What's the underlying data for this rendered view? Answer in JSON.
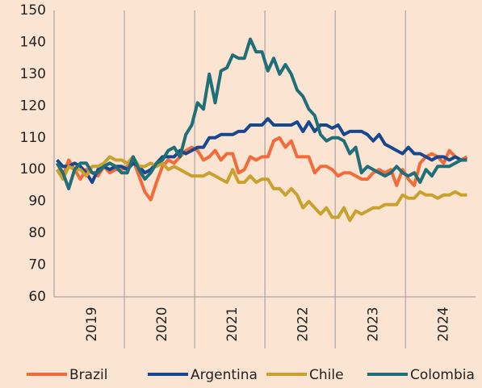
{
  "chart_data": {
    "type": "line",
    "categories": [
      null,
      null,
      null,
      null,
      null,
      null,
      "2019",
      null,
      null,
      null,
      null,
      null,
      null,
      null,
      null,
      null,
      null,
      null,
      "2020",
      null,
      null,
      null,
      null,
      null,
      null,
      null,
      null,
      null,
      null,
      null,
      "2021",
      null,
      null,
      null,
      null,
      null,
      null,
      null,
      null,
      null,
      null,
      null,
      "2022",
      null,
      null,
      null,
      null,
      null,
      null,
      null,
      null,
      null,
      null,
      null,
      "2023",
      null,
      null,
      null,
      null,
      null,
      null,
      null,
      null,
      null,
      null,
      null,
      "2024",
      null,
      null,
      null,
      null
    ],
    "series": [
      {
        "name": "Brazil",
        "color": "#f26b3a",
        "values": [
          100,
          98,
          103,
          100,
          97,
          100,
          99,
          98,
          101,
          99,
          100,
          100,
          101,
          103,
          98,
          93,
          90.5,
          96,
          101,
          103,
          102,
          104,
          106,
          107,
          106,
          103,
          104,
          106,
          103,
          105,
          105,
          99,
          100,
          104,
          103,
          104,
          104,
          109,
          110,
          107,
          109,
          104,
          104,
          104,
          99,
          101,
          101,
          100,
          98,
          99,
          99,
          98,
          97,
          97,
          99,
          100,
          99,
          100,
          95,
          100,
          97,
          95,
          102,
          104,
          105,
          104,
          102,
          106,
          104,
          103,
          104
        ]
      },
      {
        "name": "Argentina",
        "color": "#17478e",
        "values": [
          103,
          101,
          101,
          102,
          101,
          99,
          96,
          100,
          101,
          100,
          101,
          101,
          100,
          102,
          101,
          99,
          100,
          102,
          104,
          104,
          104,
          106,
          105,
          106,
          107,
          107,
          110,
          110,
          111,
          111,
          111,
          112,
          112,
          114,
          114,
          114,
          116,
          114,
          114,
          114,
          114,
          115,
          112,
          115,
          112,
          114,
          114,
          113,
          114,
          111,
          112,
          112,
          112,
          111,
          109,
          111,
          108,
          107,
          106,
          105,
          107,
          105,
          105,
          104,
          103,
          104,
          104,
          103,
          104,
          103,
          103
        ]
      },
      {
        "name": "Chile",
        "color": "#c9a12f",
        "values": [
          100,
          97,
          101,
          100,
          100,
          98,
          101,
          101,
          102,
          104,
          103,
          103,
          102,
          104,
          101,
          101,
          102,
          101,
          102,
          100,
          101,
          100,
          99,
          98,
          98,
          98,
          99,
          98,
          97,
          96,
          100,
          96,
          96,
          98,
          96,
          97,
          97,
          94,
          94,
          92,
          94,
          92,
          88,
          90,
          88,
          86,
          88,
          85,
          85,
          88,
          84,
          87,
          86,
          87,
          88,
          88,
          89,
          89,
          89,
          92,
          91,
          91,
          93,
          92,
          92,
          91,
          92,
          92,
          93,
          92,
          92
        ]
      },
      {
        "name": "Colombia",
        "color": "#1f6f78",
        "values": [
          102,
          99,
          94,
          100,
          102,
          102,
          99,
          99,
          101,
          102,
          101,
          99,
          99,
          104,
          100,
          97,
          99,
          102,
          103,
          106,
          107,
          104,
          111,
          114,
          121,
          119,
          130,
          121,
          131,
          132,
          136,
          135,
          135,
          141,
          137,
          137,
          131,
          135,
          130,
          133,
          130,
          125,
          123,
          119,
          117,
          111,
          109,
          110,
          110,
          109,
          105,
          107,
          99,
          101,
          100,
          99,
          98,
          99,
          101,
          99,
          98,
          99,
          96,
          100,
          98,
          101,
          101,
          101,
          102,
          103,
          103
        ]
      }
    ],
    "ylim": [
      60,
      150
    ],
    "yticks": [
      60,
      70,
      80,
      90,
      100,
      110,
      120,
      130,
      140,
      150
    ],
    "legend": "bottom"
  }
}
